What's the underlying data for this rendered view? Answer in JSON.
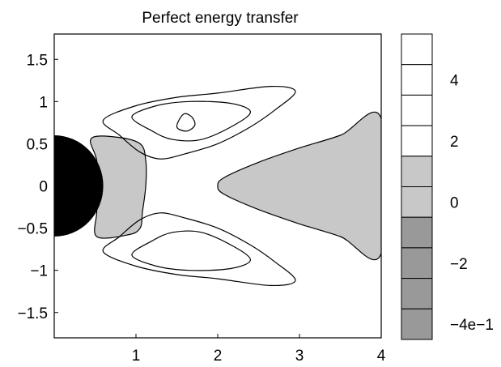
{
  "chart_data": {
    "type": "contour",
    "title": "Perfect energy transfer",
    "xlabel": "",
    "ylabel": "",
    "xlim": [
      0,
      4
    ],
    "ylim": [
      -1.8,
      1.8
    ],
    "x_ticks": [
      1,
      2,
      3,
      4
    ],
    "x_tick_labels": [
      "1",
      "2",
      "3",
      "4"
    ],
    "y_ticks": [
      1.5,
      1,
      0.5,
      0,
      -0.5,
      -1,
      -1.5
    ],
    "y_tick_labels": [
      "1.5",
      "1",
      "0.5",
      "0",
      "−0.5",
      "−1",
      "−1.5"
    ],
    "grid": false,
    "colorbar": {
      "levels": [
        {
          "label": "",
          "color": "#ffffff"
        },
        {
          "label": "4",
          "color": "#ffffff"
        },
        {
          "label": "",
          "color": "#ffffff"
        },
        {
          "label": "2",
          "color": "#ffffff"
        },
        {
          "label": "",
          "color": "#c8c8c8"
        },
        {
          "label": "0",
          "color": "#c8c8c8"
        },
        {
          "label": "",
          "color": "#999999"
        },
        {
          "label": "−2",
          "color": "#999999"
        },
        {
          "label": "",
          "color": "#999999"
        },
        {
          "label": "−4e−1",
          "color": "#999999"
        }
      ]
    },
    "obstacle": {
      "shape": "semicircle",
      "center": [
        0,
        0
      ],
      "radius": 0.6,
      "color": "#000000"
    },
    "regions": [
      {
        "name": "inner-gray-region",
        "fill": "#c8c8c8",
        "points": [
          [
            0.45,
            0.56
          ],
          [
            0.75,
            0.58
          ],
          [
            1.05,
            0.5
          ],
          [
            1.12,
            0.3
          ],
          [
            1.12,
            0.0
          ],
          [
            1.08,
            -0.3
          ],
          [
            1.05,
            -0.5
          ],
          [
            0.9,
            -0.58
          ],
          [
            0.52,
            -0.6
          ],
          [
            0.52,
            -0.3
          ],
          [
            0.5,
            0.0
          ],
          [
            0.52,
            0.3
          ]
        ]
      },
      {
        "name": "wake-gray-region",
        "fill": "#c8c8c8",
        "points": [
          [
            4.0,
            0.8
          ],
          [
            3.5,
            0.6
          ],
          [
            3.0,
            0.45
          ],
          [
            2.5,
            0.28
          ],
          [
            2.08,
            0.1
          ],
          [
            2.0,
            0.0
          ],
          [
            2.08,
            -0.1
          ],
          [
            2.5,
            -0.28
          ],
          [
            3.0,
            -0.45
          ],
          [
            3.5,
            -0.6
          ],
          [
            4.0,
            -0.8
          ]
        ]
      }
    ],
    "contours": [
      {
        "name": "upper-outer-contour",
        "closed": true,
        "points": [
          [
            0.6,
            0.78
          ],
          [
            1.0,
            0.95
          ],
          [
            1.5,
            1.05
          ],
          [
            2.0,
            1.1
          ],
          [
            2.65,
            1.18
          ],
          [
            2.95,
            1.12
          ],
          [
            2.7,
            0.9
          ],
          [
            2.4,
            0.7
          ],
          [
            2.0,
            0.5
          ],
          [
            1.6,
            0.38
          ],
          [
            1.3,
            0.32
          ],
          [
            1.05,
            0.4
          ],
          [
            0.8,
            0.6
          ]
        ]
      },
      {
        "name": "upper-middle-contour",
        "closed": true,
        "points": [
          [
            0.95,
            0.82
          ],
          [
            1.25,
            0.95
          ],
          [
            1.65,
            1.0
          ],
          [
            2.15,
            0.98
          ],
          [
            2.4,
            0.88
          ],
          [
            2.2,
            0.72
          ],
          [
            1.8,
            0.55
          ],
          [
            1.45,
            0.55
          ],
          [
            1.2,
            0.65
          ]
        ]
      },
      {
        "name": "upper-inner-contour",
        "closed": true,
        "points": [
          [
            1.5,
            0.7
          ],
          [
            1.58,
            0.85
          ],
          [
            1.68,
            0.82
          ],
          [
            1.72,
            0.72
          ],
          [
            1.62,
            0.65
          ]
        ]
      },
      {
        "name": "lower-outer-contour",
        "closed": true,
        "points": [
          [
            0.6,
            -0.78
          ],
          [
            1.0,
            -0.95
          ],
          [
            1.5,
            -1.05
          ],
          [
            2.0,
            -1.1
          ],
          [
            2.65,
            -1.18
          ],
          [
            2.95,
            -1.12
          ],
          [
            2.7,
            -0.9
          ],
          [
            2.4,
            -0.7
          ],
          [
            2.0,
            -0.5
          ],
          [
            1.6,
            -0.38
          ],
          [
            1.3,
            -0.32
          ],
          [
            1.05,
            -0.4
          ],
          [
            0.8,
            -0.6
          ]
        ]
      },
      {
        "name": "lower-middle-contour",
        "closed": true,
        "points": [
          [
            0.95,
            -0.82
          ],
          [
            1.25,
            -0.95
          ],
          [
            1.65,
            -1.0
          ],
          [
            2.15,
            -0.98
          ],
          [
            2.4,
            -0.88
          ],
          [
            2.2,
            -0.72
          ],
          [
            1.8,
            -0.55
          ],
          [
            1.45,
            -0.55
          ],
          [
            1.2,
            -0.65
          ]
        ]
      }
    ]
  }
}
